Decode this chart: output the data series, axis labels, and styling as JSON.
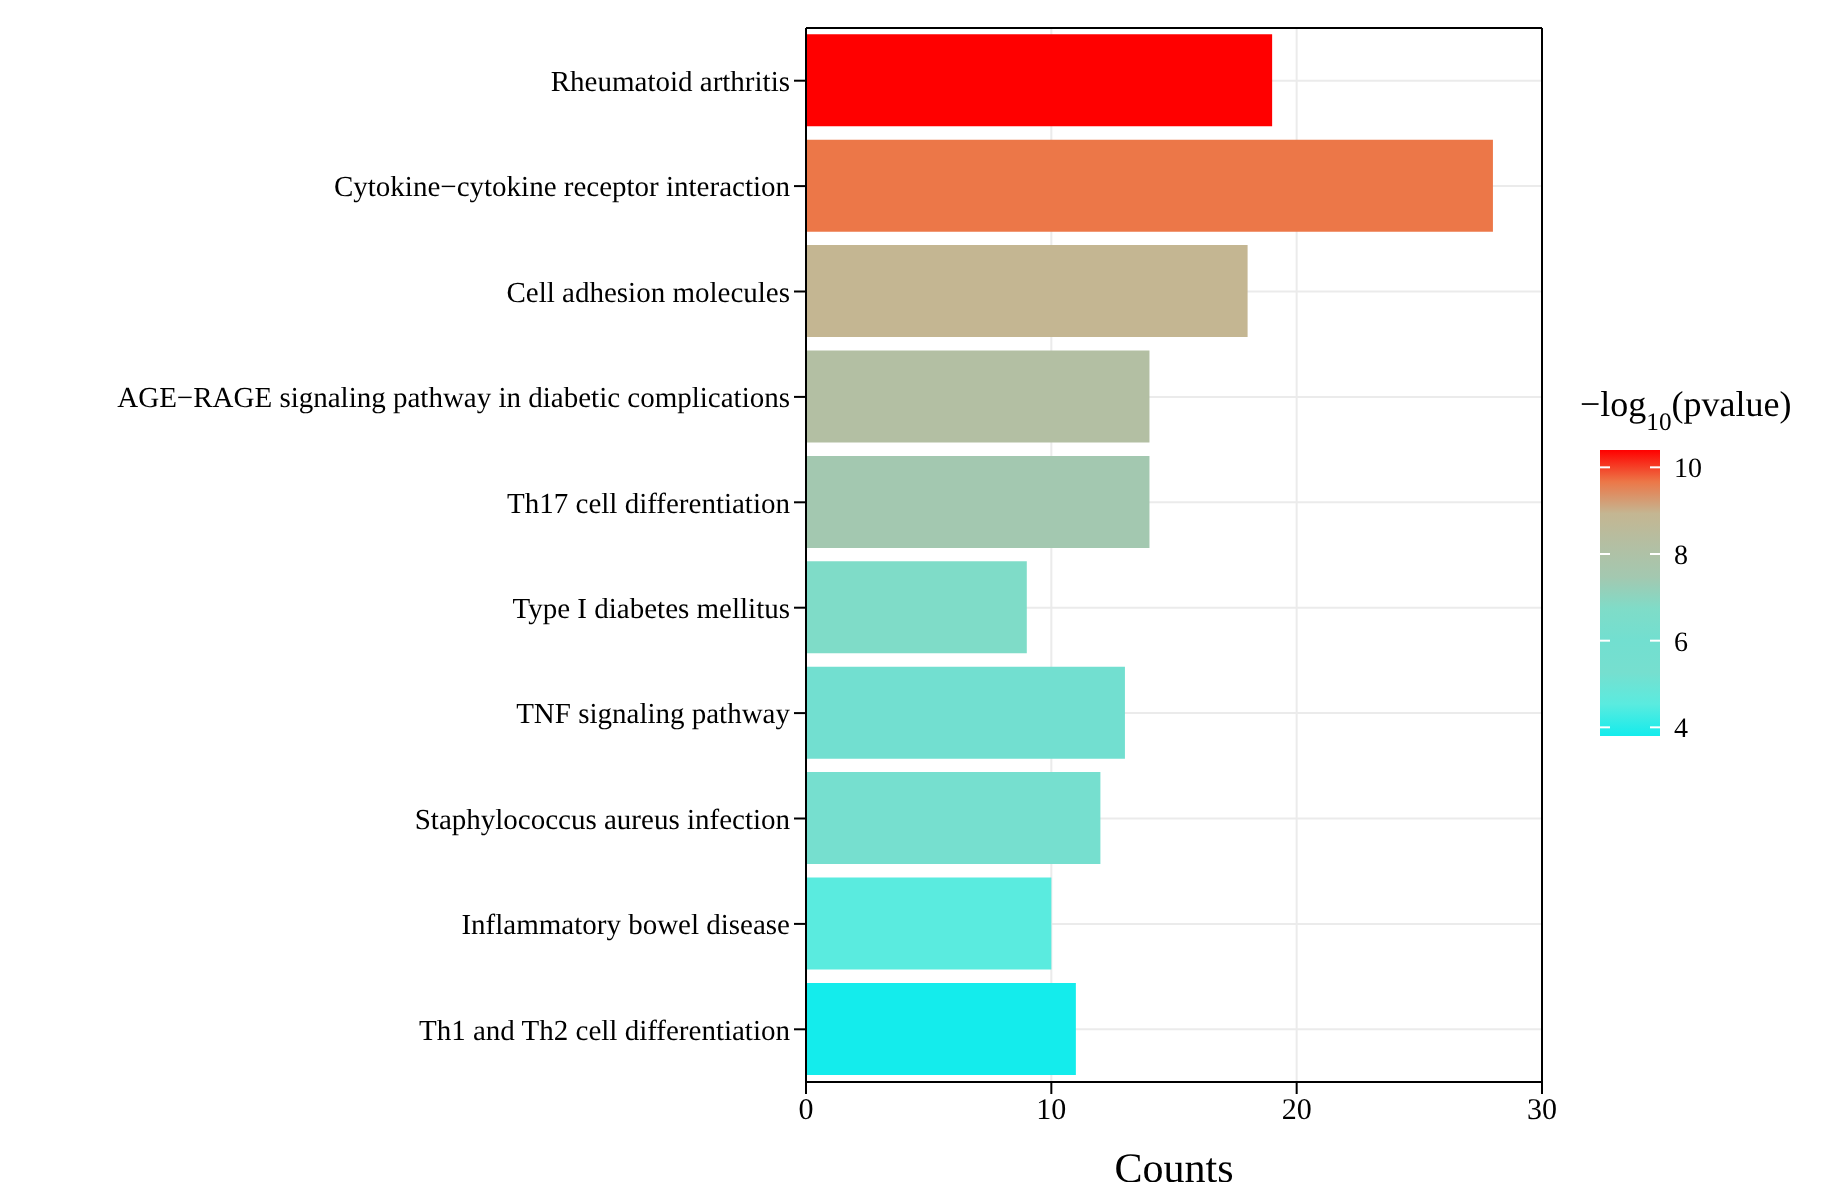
{
  "chart_data": {
    "type": "bar",
    "orientation": "horizontal",
    "xlabel": "Counts",
    "clabel": "−log$_{10}$(pvalue)",
    "categories": [
      "Rheumatoid arthritis",
      "Cytokine−cytokine receptor interaction",
      "Cell adhesion molecules",
      "AGE−RAGE signaling pathway in diabetic complications",
      "Th17 cell differentiation",
      "Type I diabetes mellitus",
      "TNF signaling pathway",
      "Staphylococcus aureus infection",
      "Inflammatory bowel disease",
      "Th1 and Th2 cell differentiation"
    ],
    "values": [
      19,
      28,
      18,
      14,
      14,
      9,
      13,
      12,
      10,
      11
    ],
    "colors": [
      "#ff0000",
      "#ec7748",
      "#c4b692",
      "#b3bfa3",
      "#a3c8b0",
      "#7fdcc8",
      "#72dfd0",
      "#76dfcf",
      "#5aebdf",
      "#14ecec"
    ],
    "xlim": [
      0,
      30
    ],
    "xticks": [
      0,
      10,
      20,
      30
    ],
    "clim": [
      3.8,
      10.4
    ],
    "cticks": [
      4,
      6,
      8,
      10
    ],
    "grid": true
  }
}
